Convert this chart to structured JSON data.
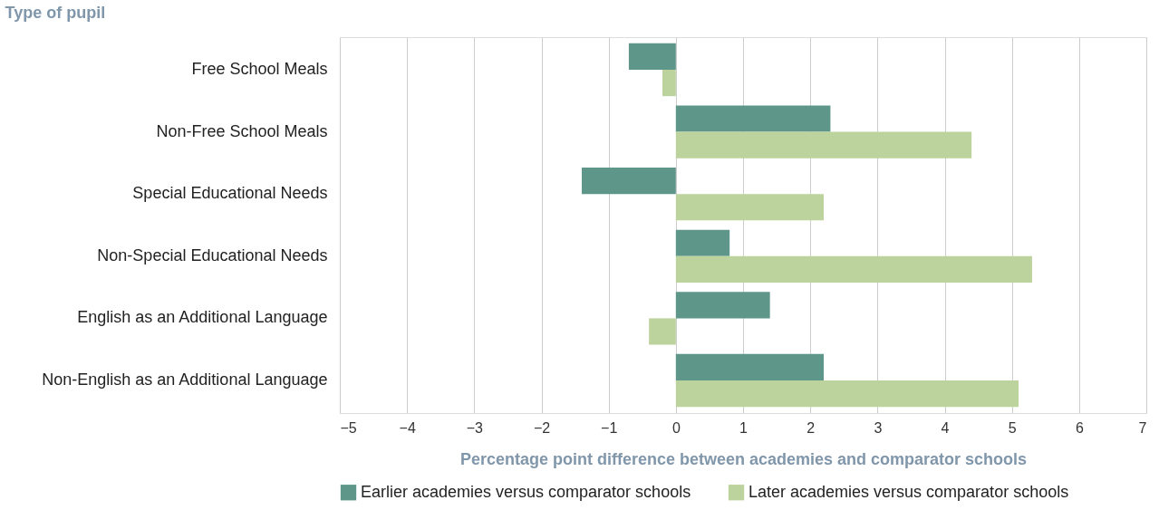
{
  "chart_data": {
    "type": "bar",
    "orientation": "horizontal",
    "ylabel": "Type of pupil",
    "xlabel": "Percentage point difference between academies and comparator schools",
    "categories": [
      "Free School Meals",
      "Non-Free School Meals",
      "Special Educational Needs",
      "Non-Special Educational Needs",
      "English as an Additional Language",
      "Non-English as an Additional Language"
    ],
    "series": [
      {
        "name": "Earlier academies versus comparator schools",
        "color": "#5f968a",
        "values": [
          -0.7,
          2.3,
          -1.4,
          0.8,
          1.4,
          2.2
        ]
      },
      {
        "name": "Later academies versus comparator schools",
        "color": "#bdd39d",
        "values": [
          -0.2,
          4.4,
          2.2,
          5.3,
          -0.4,
          5.1
        ]
      }
    ],
    "xlim": [
      -5,
      7
    ],
    "xticks": [
      -5,
      -4,
      -3,
      -2,
      -1,
      0,
      1,
      2,
      3,
      4,
      5,
      6,
      7
    ],
    "grid": "x",
    "legend": "bottom"
  }
}
